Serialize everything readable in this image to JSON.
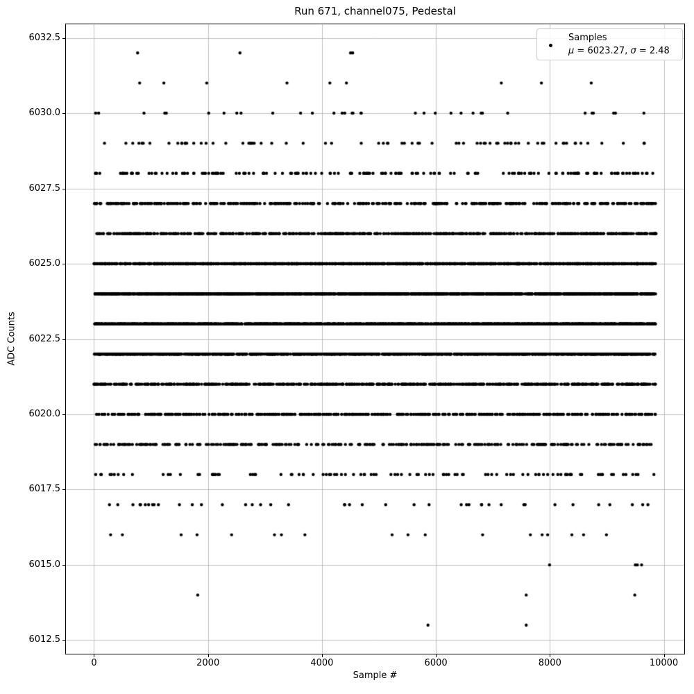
{
  "figure": {
    "background": "#ffffff",
    "spine_color": "#000000",
    "grid_color": "#b0b0b0",
    "text_color": "#000000"
  },
  "chart_data": {
    "type": "scatter",
    "title": "Run 671, channel075, Pedestal",
    "xlabel": "Sample #",
    "ylabel": "ADC Counts",
    "legend": {
      "label": "Samples",
      "mu_symbol": "μ",
      "mu_rest": " = 6023.27, ",
      "sigma_symbol": "σ",
      "sigma_rest": " = 2.48"
    },
    "mean": 6023.27,
    "sigma": 2.48,
    "marker": {
      "color": "#000000",
      "radius_px": 2.2
    },
    "grid": true,
    "legend_position": "upper right",
    "x_range_data": [
      0,
      9866
    ],
    "xlim": [
      -493,
      10359
    ],
    "ylim": [
      6012.05,
      6032.95
    ],
    "x_tick_values": [
      0,
      2000,
      4000,
      6000,
      8000,
      10000
    ],
    "x_tick_labels": [
      "0",
      "2000",
      "4000",
      "6000",
      "8000",
      "10000"
    ],
    "y_tick_values": [
      6012.5,
      6015.0,
      6017.5,
      6020.0,
      6022.5,
      6025.0,
      6027.5,
      6030.0,
      6032.5
    ],
    "y_tick_labels": [
      "6012.5",
      "6015.0",
      "6017.5",
      "6020.0",
      "6022.5",
      "6025.0",
      "6027.5",
      "6030.0",
      "6032.5"
    ],
    "rows_note": "Samples take integer ADC values; counts per ADC value estimated from band density. Sparse rows list explicit sample-# positions read from the plot; dense rows are rendered at seeded pseudo-random sample positions.",
    "rows": [
      {
        "adc": 6013,
        "count": 2,
        "x": [
          5861,
          7585
        ]
      },
      {
        "adc": 6014,
        "count": 3,
        "x": [
          1820,
          7585,
          9490
        ]
      },
      {
        "adc": 6015,
        "count": 4,
        "x": [
          7995,
          9500,
          9535,
          9610
        ]
      },
      {
        "adc": 6016,
        "count": 18,
        "x": [
          291,
          498,
          1529,
          1808,
          2415,
          3167,
          3289,
          3701,
          5231,
          5510,
          5813,
          6820,
          7658,
          7864,
          7961,
          8386,
          8592,
          8993
        ]
      },
      {
        "adc": 6017,
        "count": 42
      },
      {
        "adc": 6018,
        "count": 105
      },
      {
        "adc": 6019,
        "count": 300
      },
      {
        "adc": 6020,
        "count": 430
      },
      {
        "adc": 6021,
        "count": 700
      },
      {
        "adc": 6022,
        "count": 1050
      },
      {
        "adc": 6023,
        "count": 1450
      },
      {
        "adc": 6024,
        "count": 1500
      },
      {
        "adc": 6025,
        "count": 1080
      },
      {
        "adc": 6026,
        "count": 650
      },
      {
        "adc": 6027,
        "count": 390
      },
      {
        "adc": 6028,
        "count": 170
      },
      {
        "adc": 6029,
        "count": 75
      },
      {
        "adc": 6030,
        "count": 34
      },
      {
        "adc": 6031,
        "count": 9,
        "x": [
          801,
          1226,
          1978,
          3386,
          4139,
          4430,
          7148,
          7852,
          8726
        ]
      },
      {
        "adc": 6032,
        "count": 4,
        "x": [
          765,
          2561,
          4502,
          4539
        ]
      }
    ]
  }
}
